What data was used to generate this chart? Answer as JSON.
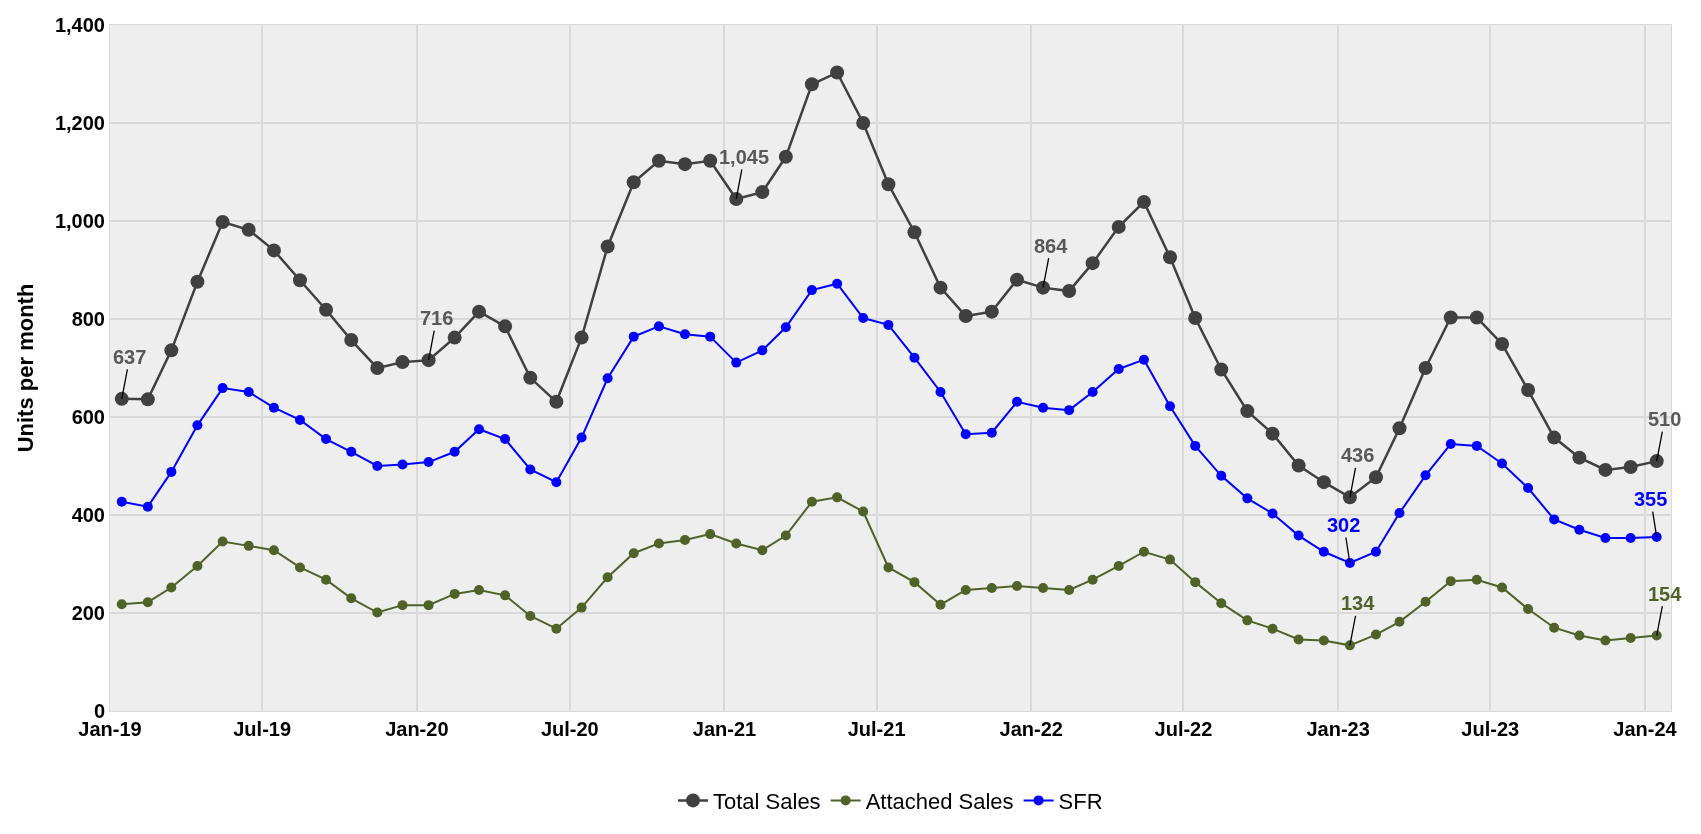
{
  "chart_data": {
    "type": "line",
    "ylabel": "Units per month",
    "x": [
      "2019-01-15",
      "2019-02-15",
      "2019-03-15",
      "2019-04-15",
      "2019-05-15",
      "2019-06-15",
      "2019-07-15",
      "2019-08-15",
      "2019-09-15",
      "2019-10-15",
      "2019-11-15",
      "2019-12-15",
      "2020-01-15",
      "2020-02-15",
      "2020-03-15",
      "2020-04-15",
      "2020-05-15",
      "2020-06-15",
      "2020-07-15",
      "2020-08-15",
      "2020-09-15",
      "2020-10-15",
      "2020-11-15",
      "2020-12-15",
      "2021-01-15",
      "2021-02-15",
      "2021-03-15",
      "2021-04-15",
      "2021-05-15",
      "2021-06-15",
      "2021-07-15",
      "2021-08-15",
      "2021-09-15",
      "2021-10-15",
      "2021-11-15",
      "2021-12-15",
      "2022-01-15",
      "2022-02-15",
      "2022-03-15",
      "2022-04-15",
      "2022-05-15",
      "2022-06-15",
      "2022-07-15",
      "2022-08-15",
      "2022-09-15",
      "2022-10-15",
      "2022-11-15",
      "2022-12-15",
      "2023-01-15",
      "2023-02-15",
      "2023-03-15",
      "2023-04-15",
      "2023-05-15",
      "2023-06-15",
      "2023-07-15",
      "2023-08-15",
      "2023-09-15",
      "2023-10-15",
      "2023-11-15",
      "2023-12-15",
      "2024-01-15"
    ],
    "series": [
      {
        "name": "Total Sales",
        "color": "#404040",
        "values": [
          637,
          636,
          736,
          876,
          998,
          982,
          940,
          879,
          819,
          757,
          700,
          712,
          716,
          762,
          815,
          785,
          680,
          631,
          762,
          948,
          1079,
          1123,
          1116,
          1123,
          1045,
          1059,
          1131,
          1279,
          1303,
          1200,
          1075,
          977,
          864,
          806,
          815,
          880,
          864,
          857,
          914,
          988,
          1039,
          926,
          802,
          697,
          612,
          566,
          501,
          467,
          436,
          477,
          577,
          700,
          803,
          803,
          749,
          655,
          558,
          517,
          492,
          498,
          510
        ],
        "value_labels": [
          "637",
          null,
          null,
          null,
          null,
          null,
          null,
          null,
          null,
          null,
          null,
          null,
          "716",
          null,
          null,
          null,
          null,
          null,
          null,
          null,
          null,
          null,
          null,
          null,
          "1,045",
          null,
          null,
          null,
          null,
          null,
          null,
          null,
          null,
          null,
          null,
          null,
          "864",
          null,
          null,
          null,
          null,
          null,
          null,
          null,
          null,
          null,
          null,
          null,
          "436",
          null,
          null,
          null,
          null,
          null,
          null,
          null,
          null,
          null,
          null,
          null,
          "510"
        ]
      },
      {
        "name": "Attached Sales",
        "color": "#4f6228",
        "values": [
          218,
          222,
          252,
          296,
          346,
          337,
          328,
          293,
          268,
          230,
          201,
          216,
          216,
          239,
          247,
          236,
          194,
          168,
          211,
          273,
          322,
          342,
          349,
          361,
          342,
          328,
          358,
          427,
          436,
          407,
          293,
          263,
          217,
          247,
          251,
          255,
          251,
          247,
          268,
          296,
          325,
          309,
          263,
          220,
          185,
          168,
          146,
          144,
          134,
          156,
          182,
          223,
          265,
          268,
          252,
          208,
          170,
          154,
          144,
          149,
          154
        ],
        "value_labels": [
          null,
          null,
          null,
          null,
          null,
          null,
          null,
          null,
          null,
          null,
          null,
          null,
          null,
          null,
          null,
          null,
          null,
          null,
          null,
          null,
          null,
          null,
          null,
          null,
          null,
          null,
          null,
          null,
          null,
          null,
          null,
          null,
          null,
          null,
          null,
          null,
          null,
          null,
          null,
          null,
          null,
          null,
          null,
          null,
          null,
          null,
          null,
          null,
          "134",
          null,
          null,
          null,
          null,
          null,
          null,
          null,
          null,
          null,
          null,
          null,
          "154"
        ]
      },
      {
        "name": "SFR",
        "color": "#0000ff",
        "values": [
          427,
          417,
          488,
          583,
          659,
          651,
          619,
          594,
          555,
          529,
          500,
          503,
          508,
          529,
          575,
          555,
          493,
          467,
          558,
          679,
          764,
          785,
          769,
          764,
          711,
          736,
          783,
          859,
          872,
          802,
          788,
          721,
          651,
          565,
          568,
          631,
          619,
          614,
          651,
          698,
          717,
          622,
          541,
          480,
          434,
          403,
          358,
          325,
          302,
          325,
          404,
          481,
          545,
          541,
          505,
          455,
          391,
          370,
          353,
          353,
          355
        ],
        "value_labels": [
          null,
          null,
          null,
          null,
          null,
          null,
          null,
          null,
          null,
          null,
          null,
          null,
          null,
          null,
          null,
          null,
          null,
          null,
          null,
          null,
          null,
          null,
          null,
          null,
          null,
          null,
          null,
          null,
          null,
          null,
          null,
          null,
          null,
          null,
          null,
          null,
          null,
          null,
          null,
          null,
          null,
          null,
          null,
          null,
          null,
          null,
          null,
          null,
          "302",
          null,
          null,
          null,
          null,
          null,
          null,
          null,
          null,
          null,
          null,
          null,
          "355"
        ]
      }
    ],
    "xlim": [
      "2019-01-01",
      "2024-02-01"
    ],
    "xticks": [
      {
        "value": "2019-01-01",
        "label": "Jan-19"
      },
      {
        "value": "2019-07-01",
        "label": "Jul-19"
      },
      {
        "value": "2020-01-01",
        "label": "Jan-20"
      },
      {
        "value": "2020-07-01",
        "label": "Jul-20"
      },
      {
        "value": "2021-01-01",
        "label": "Jan-21"
      },
      {
        "value": "2021-07-01",
        "label": "Jul-21"
      },
      {
        "value": "2022-01-01",
        "label": "Jan-22"
      },
      {
        "value": "2022-07-01",
        "label": "Jul-22"
      },
      {
        "value": "2023-01-01",
        "label": "Jan-23"
      },
      {
        "value": "2023-07-01",
        "label": "Jul-23"
      },
      {
        "value": "2024-01-01",
        "label": "Jan-24"
      }
    ],
    "ylim": [
      0,
      1400
    ],
    "yticks": [
      0,
      {
        "value": 200,
        "label": "200"
      },
      {
        "value": 400,
        "label": "400"
      },
      {
        "value": 600,
        "label": "600"
      },
      {
        "value": 800,
        "label": "800"
      },
      {
        "value": 1000,
        "label": "1,000"
      },
      {
        "value": 1200,
        "label": "1,200"
      },
      {
        "value": 1400,
        "label": "1,400"
      }
    ],
    "grid": true,
    "legend": "bottom",
    "marker": "circle",
    "line_style": "solid"
  }
}
